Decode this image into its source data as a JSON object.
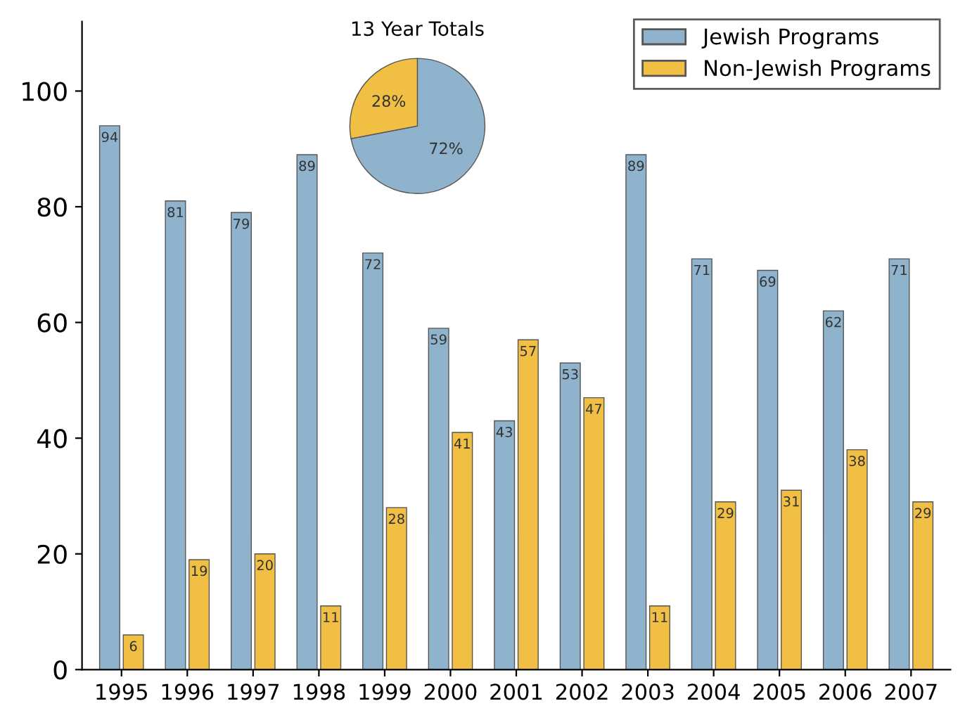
{
  "chart_data": [
    {
      "type": "bar",
      "categories": [
        "1995",
        "1996",
        "1997",
        "1998",
        "1999",
        "2000",
        "2001",
        "2002",
        "2003",
        "2004",
        "2005",
        "2006",
        "2007"
      ],
      "series": [
        {
          "name": "Jewish Programs",
          "color": "#8fb3cc",
          "values": [
            94,
            81,
            79,
            89,
            72,
            59,
            43,
            53,
            89,
            71,
            69,
            62,
            71
          ]
        },
        {
          "name": "Non-Jewish Programs",
          "color": "#f2bf45",
          "values": [
            6,
            19,
            20,
            11,
            28,
            41,
            57,
            47,
            11,
            29,
            31,
            38,
            29
          ]
        }
      ],
      "ylim": [
        0,
        112
      ],
      "yticks": [
        0,
        20,
        40,
        60,
        80,
        100
      ],
      "grid": false,
      "legend": "top right",
      "data_labels": true
    },
    {
      "type": "pie",
      "title": "13 Year Totals",
      "categories": [
        null,
        null
      ],
      "values": [
        72,
        28
      ],
      "colors": [
        "#8fb3cc",
        "#f2bf45"
      ],
      "value_labels": [
        "72%",
        "28%"
      ]
    }
  ]
}
